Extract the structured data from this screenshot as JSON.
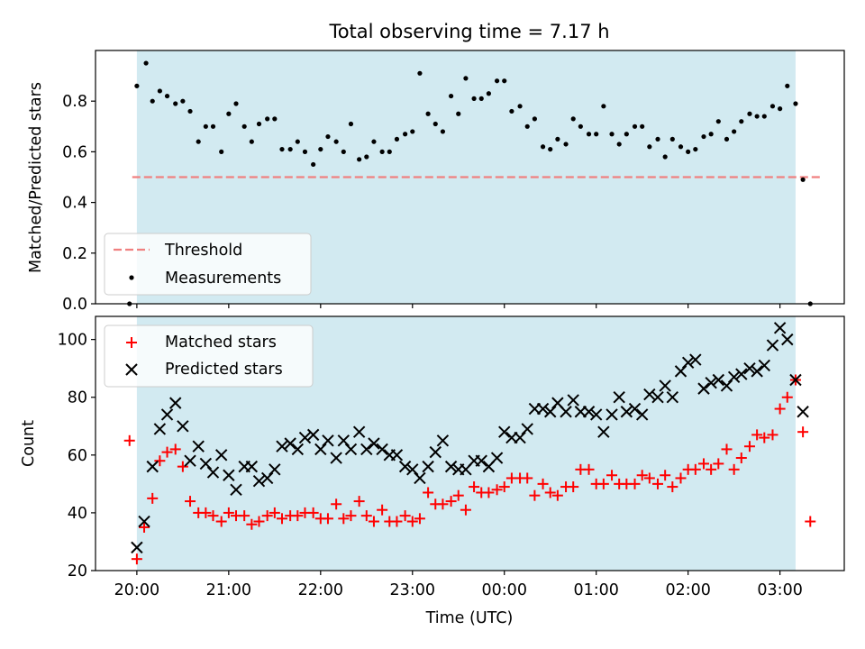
{
  "chart_data": {
    "type": "scatter",
    "title": "Total observing time = 7.17 h",
    "xlabel": "Time (UTC)",
    "x_tick_labels": [
      "20:00",
      "21:00",
      "22:00",
      "23:00",
      "00:00",
      "01:00",
      "02:00",
      "03:00"
    ],
    "x_tick_hours": [
      0,
      1,
      2,
      3,
      4,
      5,
      6,
      7
    ],
    "x_range_hours": [
      -0.45,
      7.7
    ],
    "x_origin": "20:00 UTC",
    "shaded_span_hours": [
      0.0,
      7.17
    ],
    "colors": {
      "shade": "#add8e6",
      "matched": "#ff0000",
      "predicted": "#000000",
      "threshold": "#f08080",
      "measurements": "#000000"
    },
    "top_panel": {
      "ylabel": "Matched/Predicted stars",
      "ylim": [
        0.0,
        1.0
      ],
      "yticks": [
        "0.0",
        "0.2",
        "0.4",
        "0.6",
        "0.8"
      ],
      "ytick_values": [
        0.0,
        0.2,
        0.4,
        0.6,
        0.8
      ],
      "legend_position": "lower-left",
      "threshold": {
        "name": "Threshold",
        "value": 0.5,
        "x_start": -0.05,
        "x_end": 7.45
      },
      "measurements": {
        "name": "Measurements",
        "x": [
          -0.08,
          0.0,
          0.1,
          0.17,
          0.25,
          0.33,
          0.42,
          0.5,
          0.58,
          0.67,
          0.75,
          0.83,
          0.92,
          1.0,
          1.08,
          1.17,
          1.25,
          1.33,
          1.42,
          1.5,
          1.58,
          1.67,
          1.75,
          1.83,
          1.92,
          2.0,
          2.08,
          2.17,
          2.25,
          2.33,
          2.42,
          2.5,
          2.58,
          2.67,
          2.75,
          2.83,
          2.92,
          3.0,
          3.08,
          3.17,
          3.25,
          3.33,
          3.42,
          3.5,
          3.58,
          3.67,
          3.75,
          3.83,
          3.92,
          4.0,
          4.08,
          4.17,
          4.25,
          4.33,
          4.42,
          4.5,
          4.58,
          4.67,
          4.75,
          4.83,
          4.92,
          5.0,
          5.08,
          5.17,
          5.25,
          5.33,
          5.42,
          5.5,
          5.58,
          5.67,
          5.75,
          5.83,
          5.92,
          6.0,
          6.08,
          6.17,
          6.25,
          6.33,
          6.42,
          6.5,
          6.58,
          6.67,
          6.75,
          6.83,
          6.92,
          7.0,
          7.08,
          7.17,
          7.25,
          7.33
        ],
        "y": [
          0.0,
          0.86,
          0.95,
          0.8,
          0.84,
          0.82,
          0.79,
          0.8,
          0.76,
          0.64,
          0.7,
          0.7,
          0.6,
          0.75,
          0.79,
          0.7,
          0.64,
          0.71,
          0.73,
          0.73,
          0.61,
          0.61,
          0.64,
          0.6,
          0.55,
          0.61,
          0.66,
          0.64,
          0.6,
          0.71,
          0.57,
          0.58,
          0.64,
          0.6,
          0.6,
          0.65,
          0.67,
          0.68,
          0.91,
          0.75,
          0.71,
          0.68,
          0.82,
          0.75,
          0.89,
          0.81,
          0.81,
          0.83,
          0.88,
          0.88,
          0.76,
          0.78,
          0.7,
          0.73,
          0.62,
          0.61,
          0.65,
          0.63,
          0.73,
          0.7,
          0.67,
          0.67,
          0.78,
          0.67,
          0.63,
          0.67,
          0.7,
          0.7,
          0.62,
          0.65,
          0.58,
          0.65,
          0.62,
          0.6,
          0.61,
          0.66,
          0.67,
          0.72,
          0.65,
          0.68,
          0.72,
          0.75,
          0.74,
          0.74,
          0.78,
          0.77,
          0.86,
          0.79,
          0.49,
          0.0
        ]
      }
    },
    "bottom_panel": {
      "ylabel": "Count",
      "ylim": [
        20,
        108
      ],
      "yticks": [
        "20",
        "40",
        "60",
        "80",
        "100"
      ],
      "ytick_values": [
        20,
        40,
        60,
        80,
        100
      ],
      "legend_position": "upper-left",
      "series": [
        {
          "name": "Matched stars",
          "marker": "plus",
          "x": [
            -0.08,
            0.0,
            0.08,
            0.17,
            0.25,
            0.33,
            0.42,
            0.5,
            0.58,
            0.67,
            0.75,
            0.83,
            0.92,
            1.0,
            1.08,
            1.17,
            1.25,
            1.33,
            1.42,
            1.5,
            1.58,
            1.67,
            1.75,
            1.83,
            1.92,
            2.0,
            2.08,
            2.17,
            2.25,
            2.33,
            2.42,
            2.5,
            2.58,
            2.67,
            2.75,
            2.83,
            2.92,
            3.0,
            3.08,
            3.17,
            3.25,
            3.33,
            3.42,
            3.5,
            3.58,
            3.67,
            3.75,
            3.83,
            3.92,
            4.0,
            4.08,
            4.17,
            4.25,
            4.33,
            4.42,
            4.5,
            4.58,
            4.67,
            4.75,
            4.83,
            4.92,
            5.0,
            5.08,
            5.17,
            5.25,
            5.33,
            5.42,
            5.5,
            5.58,
            5.67,
            5.75,
            5.83,
            5.92,
            6.0,
            6.08,
            6.17,
            6.25,
            6.33,
            6.42,
            6.5,
            6.58,
            6.67,
            6.75,
            6.83,
            6.92,
            7.0,
            7.08,
            7.17,
            7.25,
            7.33
          ],
          "y": [
            65,
            24,
            35,
            45,
            58,
            61,
            62,
            56,
            44,
            40,
            40,
            39,
            37,
            40,
            39,
            39,
            36,
            37,
            39,
            40,
            38,
            39,
            39,
            40,
            40,
            38,
            38,
            43,
            38,
            39,
            44,
            39,
            37,
            41,
            37,
            37,
            39,
            37,
            38,
            47,
            43,
            43,
            44,
            46,
            41,
            49,
            47,
            47,
            48,
            49,
            52,
            52,
            52,
            46,
            50,
            47,
            46,
            49,
            49,
            55,
            55,
            50,
            50,
            53,
            50,
            50,
            50,
            53,
            52,
            50,
            53,
            49,
            52,
            55,
            55,
            57,
            55,
            57,
            62,
            55,
            59,
            63,
            67,
            66,
            67,
            76,
            80,
            86,
            68,
            37
          ]
        },
        {
          "name": "Predicted stars",
          "marker": "x",
          "x": [
            0.0,
            0.08,
            0.17,
            0.25,
            0.33,
            0.42,
            0.5,
            0.58,
            0.67,
            0.75,
            0.83,
            0.92,
            1.0,
            1.08,
            1.17,
            1.25,
            1.33,
            1.42,
            1.5,
            1.58,
            1.67,
            1.75,
            1.83,
            1.92,
            2.0,
            2.08,
            2.17,
            2.25,
            2.33,
            2.42,
            2.5,
            2.58,
            2.67,
            2.75,
            2.83,
            2.92,
            3.0,
            3.08,
            3.17,
            3.25,
            3.33,
            3.42,
            3.5,
            3.58,
            3.67,
            3.75,
            3.83,
            3.92,
            4.0,
            4.08,
            4.17,
            4.25,
            4.33,
            4.42,
            4.5,
            4.58,
            4.67,
            4.75,
            4.83,
            4.92,
            5.0,
            5.08,
            5.17,
            5.25,
            5.33,
            5.42,
            5.5,
            5.58,
            5.67,
            5.75,
            5.83,
            5.92,
            6.0,
            6.08,
            6.17,
            6.25,
            6.33,
            6.42,
            6.5,
            6.58,
            6.67,
            6.75,
            6.83,
            6.92,
            7.0,
            7.08,
            7.17,
            7.25
          ],
          "y": [
            28,
            37,
            56,
            69,
            74,
            78,
            70,
            58,
            63,
            57,
            54,
            60,
            53,
            48,
            56,
            56,
            51,
            52,
            55,
            63,
            64,
            62,
            66,
            67,
            62,
            65,
            59,
            65,
            62,
            68,
            62,
            64,
            62,
            60,
            60,
            56,
            55,
            52,
            56,
            61,
            65,
            56,
            55,
            55,
            58,
            58,
            56,
            59,
            68,
            66,
            66,
            69,
            76,
            76,
            75,
            78,
            75,
            79,
            75,
            75,
            74,
            68,
            74,
            80,
            75,
            76,
            74,
            81,
            80,
            84,
            80,
            89,
            92,
            93,
            83,
            85,
            86,
            84,
            87,
            88,
            90,
            89,
            91,
            98,
            104,
            100,
            86,
            75
          ]
        }
      ]
    }
  }
}
